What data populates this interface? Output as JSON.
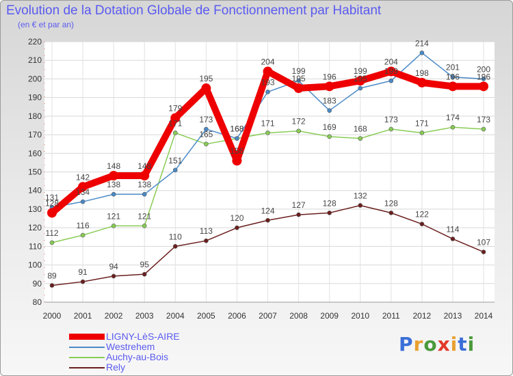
{
  "header": {
    "title": "Evolution de la Dotation Globale de Fonctionnement par Habitant",
    "subtitle": "(en € et par an)"
  },
  "logo": {
    "text": "Proxiti",
    "letters": [
      "P",
      "r",
      "o",
      "x",
      "i",
      "t",
      "i"
    ],
    "colors": [
      "#3b6fd8",
      "#e8a030",
      "#4a9a3c",
      "#e23a2a",
      "#e8a030",
      "#3b6fd8",
      "#4a9a3c"
    ]
  },
  "chart_data": {
    "type": "line",
    "title": "Evolution de la Dotation Globale de Fonctionnement par Habitant",
    "subtitle": "(en € et par an)",
    "xlabel": "",
    "ylabel": "",
    "ylim": [
      80,
      220
    ],
    "ytick_step": 10,
    "grid": true,
    "legend_position": "bottom-left",
    "categories": [
      "2000",
      "2001",
      "2002",
      "2003",
      "2004",
      "2005",
      "2006",
      "2007",
      "2008",
      "2009",
      "2010",
      "2011",
      "2012",
      "2013",
      "2014"
    ],
    "series": [
      {
        "name": "LIGNY-LèS-AIRE",
        "color": "#ee0000",
        "emphasis": "bold",
        "values": [
          128,
          142,
          148,
          148,
          179,
          195,
          156,
          204,
          195,
          196,
          199,
          204,
          198,
          196,
          196
        ],
        "labels": [
          "128",
          "142",
          "148",
          "148",
          "179",
          "195",
          "156",
          "204",
          "195",
          "196",
          "199",
          "204",
          "198",
          "196",
          "196"
        ]
      },
      {
        "name": "Westrehem",
        "color": "#4a8ac8",
        "emphasis": "normal",
        "values": [
          131,
          134,
          138,
          138,
          151,
          173,
          168,
          193,
          199,
          183,
          195,
          199,
          214,
          201,
          200
        ],
        "labels": [
          "131",
          "134",
          "138",
          "138",
          "151",
          "173",
          "168",
          "193",
          "199",
          "183",
          "195",
          "199",
          "214",
          "201",
          "200"
        ]
      },
      {
        "name": "Auchy-au-Bois",
        "color": "#88cc55",
        "emphasis": "normal",
        "values": [
          112,
          116,
          121,
          121,
          171,
          165,
          168,
          171,
          172,
          169,
          168,
          173,
          171,
          174,
          173
        ],
        "labels": [
          "112",
          "116",
          "121",
          "121",
          "171",
          "165",
          "168",
          "171",
          "172",
          "169",
          "168",
          "173",
          "171",
          "174",
          "173"
        ]
      },
      {
        "name": "Rely",
        "color": "#6b1e1e",
        "emphasis": "normal",
        "values": [
          89,
          91,
          94,
          95,
          110,
          113,
          120,
          124,
          127,
          128,
          132,
          128,
          122,
          114,
          107
        ],
        "labels": [
          "89",
          "91",
          "94",
          "95",
          "110",
          "113",
          "120",
          "124",
          "127",
          "128",
          "132",
          "128",
          "122",
          "114",
          "107"
        ]
      }
    ]
  }
}
